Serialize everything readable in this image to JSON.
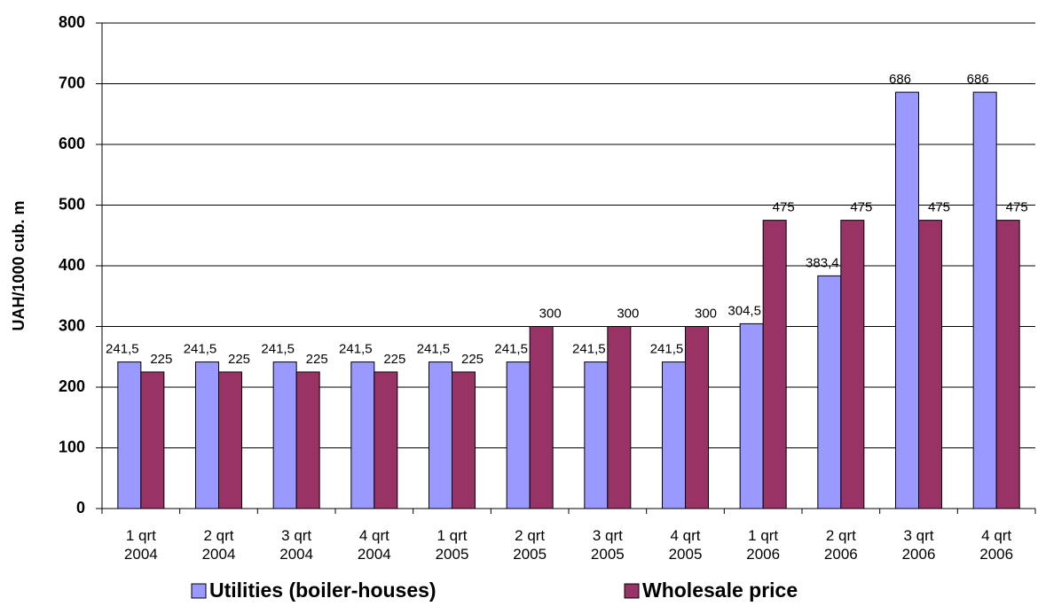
{
  "chart_data": {
    "type": "bar",
    "y_label": "UAH/1000 cub. m",
    "categories": [
      "1 qrt\n2004",
      "2 qrt\n2004",
      "3 qrt\n2004",
      "4 qrt\n2004",
      "1 qrt\n2005",
      "2 qrt\n2005",
      "3 qrt\n2005",
      "4 qrt\n2005",
      "1 qrt\n2006",
      "2 qrt\n2006",
      "3 qrt\n2006",
      "4 qrt\n2006"
    ],
    "series": [
      {
        "name": "Utilities (boiler-houses)",
        "color": "#9999ff",
        "values": [
          241.5,
          241.5,
          241.5,
          241.5,
          241.5,
          241.5,
          241.5,
          241.5,
          304.5,
          383.4,
          686,
          686
        ],
        "value_labels": [
          "241,5",
          "241,5",
          "241,5",
          "241,5",
          "241,5",
          "241,5",
          "241,5",
          "241,5",
          "304,5",
          "383,4",
          "686",
          "686"
        ]
      },
      {
        "name": "Wholesale price",
        "color": "#993366",
        "values": [
          225,
          225,
          225,
          225,
          225,
          300,
          300,
          300,
          475,
          475,
          475,
          475
        ],
        "value_labels": [
          "225",
          "225",
          "225",
          "225",
          "225",
          "300",
          "300",
          "300",
          "475",
          "475",
          "475",
          "475"
        ]
      }
    ],
    "ylim": [
      0,
      800
    ],
    "yticks": [
      0,
      100,
      200,
      300,
      400,
      500,
      600,
      700,
      800
    ],
    "grid": true,
    "legend": "bottom"
  }
}
